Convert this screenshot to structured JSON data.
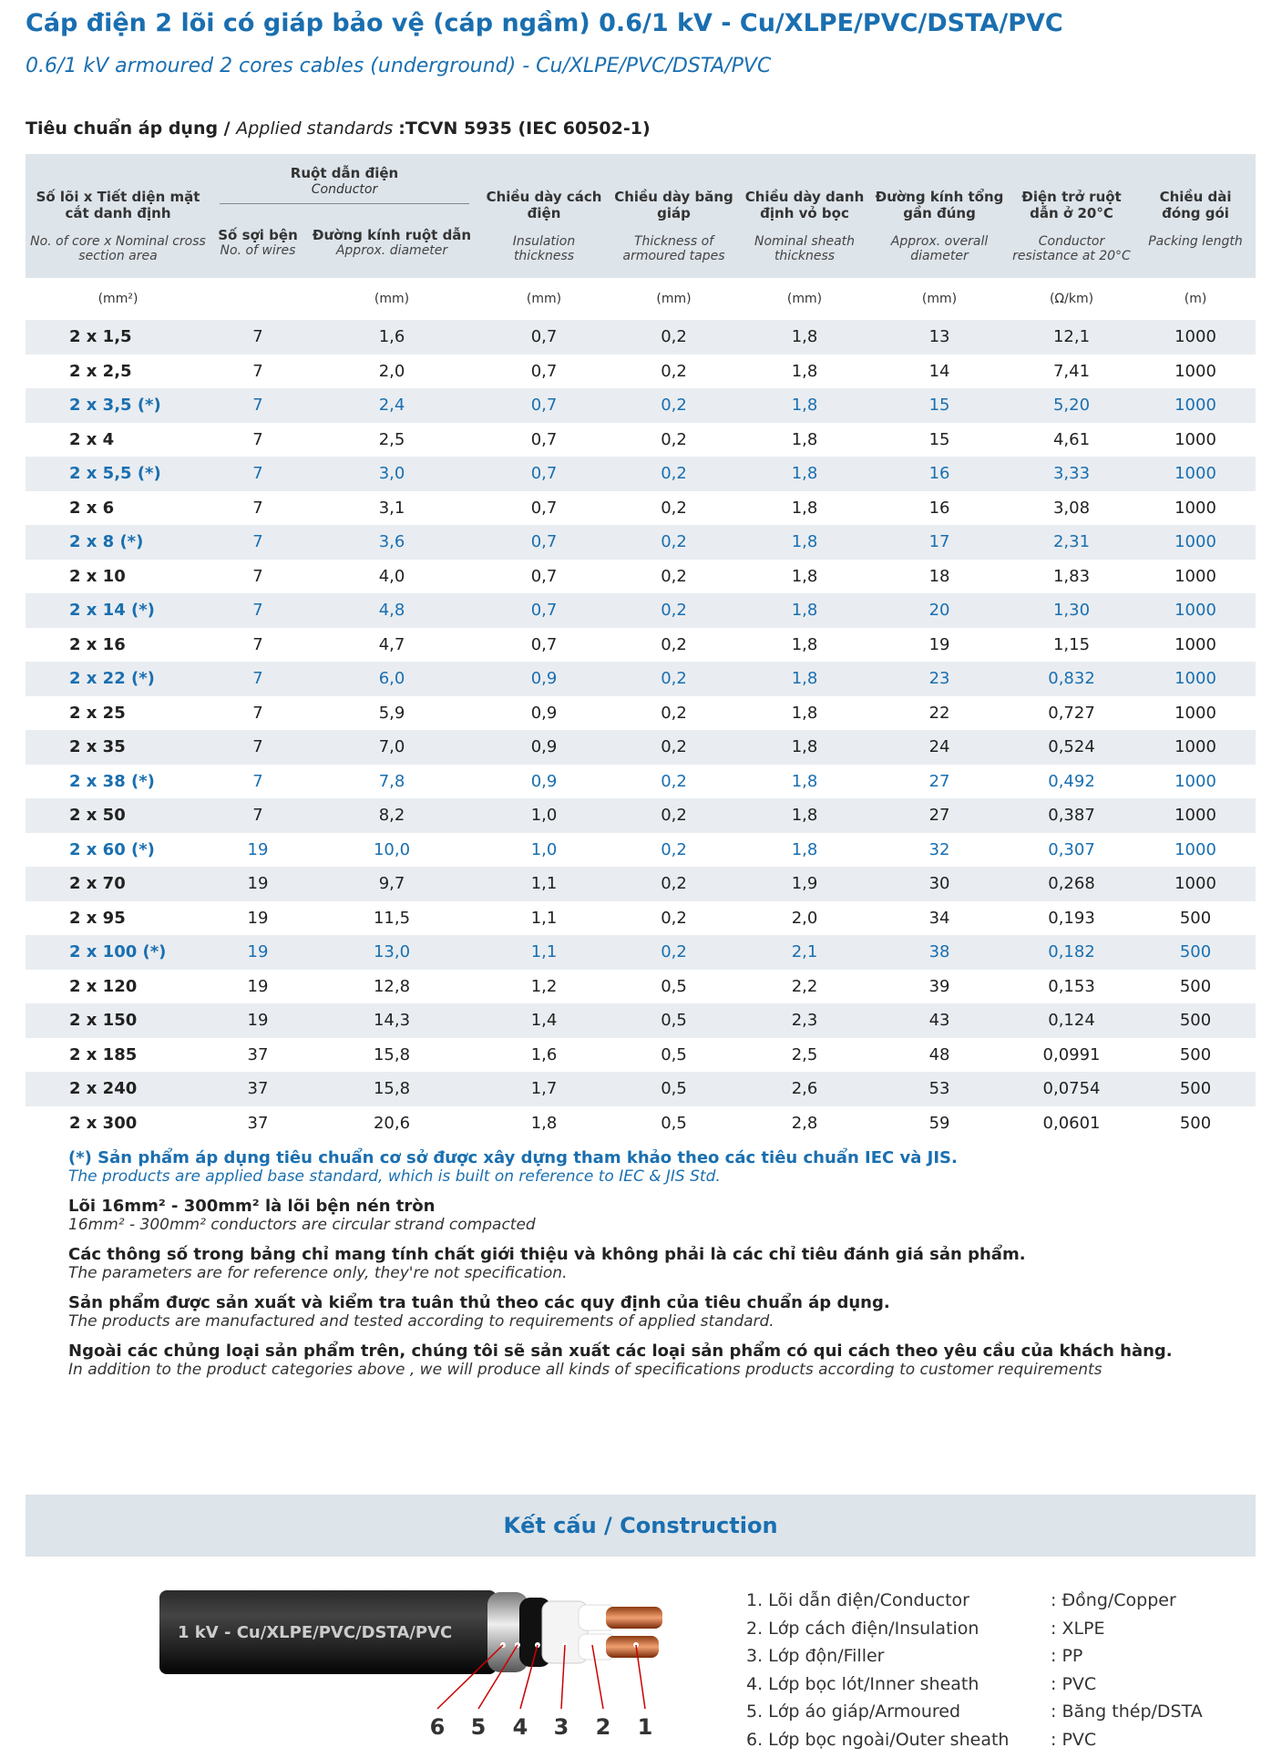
{
  "header": {
    "title": "Cáp điện 2 lõi có giáp bảo vệ (cáp ngầm) 0.6/1 kV - Cu/XLPE/PVC/DSTA/PVC",
    "subtitle": "0.6/1 kV armoured 2 cores cables (underground) - Cu/XLPE/PVC/DSTA/PVC",
    "standard_label": "Tiêu chuẩn áp dụng / ",
    "standard_italic": "Applied standards ",
    "standard_value": ":TCVN 5935 (IEC 60502-1)"
  },
  "table": {
    "conductor_group": {
      "vi": "Ruột dẫn điện",
      "en": "Conductor"
    },
    "columns": [
      {
        "vi": "Số lõi x Tiết diện mặt cắt danh định",
        "en": "No. of core x Nominal cross section area",
        "unit": "(mm²)"
      },
      {
        "vi": "Số sợi bện",
        "en": "No. of wires"
      },
      {
        "vi": "Đường kính ruột dẫn",
        "en": "Approx. diameter",
        "unit": "(mm)"
      },
      {
        "vi": "Chiều dày cách điện",
        "en": "Insulation thickness",
        "unit": "(mm)"
      },
      {
        "vi": "Chiều dày băng giáp",
        "en": "Thickness of armoured tapes",
        "unit": "(mm)"
      },
      {
        "vi": "Chiều dày danh định vỏ bọc",
        "en": "Nominal sheath thickness",
        "unit": "(mm)"
      },
      {
        "vi": "Đường kính tổng gần đúng",
        "en": "Approx. overall diameter",
        "unit": "(mm)"
      },
      {
        "vi": "Điện trở ruột dẫn ở 20°C",
        "en": "Conductor resistance at 20°C",
        "unit": "(Ω/km)"
      },
      {
        "vi": "Chiều dài đóng gói",
        "en": "Packing length",
        "unit": "(m)"
      }
    ],
    "rows": [
      [
        "2 x 1,5",
        "7",
        "1,6",
        "0,7",
        "0,2",
        "1,8",
        "13",
        "12,1",
        "1000"
      ],
      [
        "2 x 2,5",
        "7",
        "2,0",
        "0,7",
        "0,2",
        "1,8",
        "14",
        "7,41",
        "1000"
      ],
      [
        "2 x 3,5 (*)",
        "7",
        "2,4",
        "0,7",
        "0,2",
        "1,8",
        "15",
        "5,20",
        "1000"
      ],
      [
        "2 x 4",
        "7",
        "2,5",
        "0,7",
        "0,2",
        "1,8",
        "15",
        "4,61",
        "1000"
      ],
      [
        "2 x 5,5 (*)",
        "7",
        "3,0",
        "0,7",
        "0,2",
        "1,8",
        "16",
        "3,33",
        "1000"
      ],
      [
        "2 x 6",
        "7",
        "3,1",
        "0,7",
        "0,2",
        "1,8",
        "16",
        "3,08",
        "1000"
      ],
      [
        "2 x 8 (*)",
        "7",
        "3,6",
        "0,7",
        "0,2",
        "1,8",
        "17",
        "2,31",
        "1000"
      ],
      [
        "2 x 10",
        "7",
        "4,0",
        "0,7",
        "0,2",
        "1,8",
        "18",
        "1,83",
        "1000"
      ],
      [
        "2 x 14 (*)",
        "7",
        "4,8",
        "0,7",
        "0,2",
        "1,8",
        "20",
        "1,30",
        "1000"
      ],
      [
        "2 x 16",
        "7",
        "4,7",
        "0,7",
        "0,2",
        "1,8",
        "19",
        "1,15",
        "1000"
      ],
      [
        "2 x 22 (*)",
        "7",
        "6,0",
        "0,9",
        "0,2",
        "1,8",
        "23",
        "0,832",
        "1000"
      ],
      [
        "2 x 25",
        "7",
        "5,9",
        "0,9",
        "0,2",
        "1,8",
        "22",
        "0,727",
        "1000"
      ],
      [
        "2 x 35",
        "7",
        "7,0",
        "0,9",
        "0,2",
        "1,8",
        "24",
        "0,524",
        "1000"
      ],
      [
        "2 x 38 (*)",
        "7",
        "7,8",
        "0,9",
        "0,2",
        "1,8",
        "27",
        "0,492",
        "1000"
      ],
      [
        "2 x 50",
        "7",
        "8,2",
        "1,0",
        "0,2",
        "1,8",
        "27",
        "0,387",
        "1000"
      ],
      [
        "2 x 60 (*)",
        "19",
        "10,0",
        "1,0",
        "0,2",
        "1,8",
        "32",
        "0,307",
        "1000"
      ],
      [
        "2 x 70",
        "19",
        "9,7",
        "1,1",
        "0,2",
        "1,9",
        "30",
        "0,268",
        "1000"
      ],
      [
        "2 x 95",
        "19",
        "11,5",
        "1,1",
        "0,2",
        "2,0",
        "34",
        "0,193",
        "500"
      ],
      [
        "2 x 100 (*)",
        "19",
        "13,0",
        "1,1",
        "0,2",
        "2,1",
        "38",
        "0,182",
        "500"
      ],
      [
        "2 x 120",
        "19",
        "12,8",
        "1,2",
        "0,5",
        "2,2",
        "39",
        "0,153",
        "500"
      ],
      [
        "2 x 150",
        "19",
        "14,3",
        "1,4",
        "0,5",
        "2,3",
        "43",
        "0,124",
        "500"
      ],
      [
        "2 x 185",
        "37",
        "15,8",
        "1,6",
        "0,5",
        "2,5",
        "48",
        "0,0991",
        "500"
      ],
      [
        "2 x 240",
        "37",
        "15,8",
        "1,7",
        "0,5",
        "2,6",
        "53",
        "0,0754",
        "500"
      ],
      [
        "2 x 300",
        "37",
        "20,6",
        "1,8",
        "0,5",
        "2,8",
        "59",
        "0,0601",
        "500"
      ]
    ],
    "highlighted_rows": [
      2,
      4,
      6,
      8,
      10,
      13,
      15,
      18
    ],
    "highlight_color": "#1a6fb0"
  },
  "notes": [
    {
      "vi": "(*) Sản phẩm áp dụng tiêu chuẩn cơ sở được xây dựng tham khảo theo các tiêu chuẩn IEC và JIS.",
      "en": "The products are applied base standard, which is built on reference to IEC & JIS Std.",
      "color": "#1a6fb0"
    },
    {
      "vi": "Lõi 16mm² - 300mm² là lõi bện nén tròn",
      "en": "16mm² - 300mm² conductors are circular strand compacted"
    },
    {
      "vi": "Các thông số trong bảng chỉ mang tính chất giới thiệu và không phải là các chỉ tiêu đánh giá sản phẩm.",
      "en": "The parameters are for reference only, they're not specification."
    },
    {
      "vi": "Sản phẩm được sản xuất và kiểm tra tuân thủ theo các quy định của tiêu chuẩn áp dụng.",
      "en": "The products are manufactured and tested according to requirements of applied standard."
    },
    {
      "vi": "Ngoài các chủng loại sản phẩm trên, chúng tôi sẽ sản xuất các loại sản phẩm có qui cách theo yêu cầu của khách hàng.",
      "en": "In addition to the product categories above , we will produce all kinds of specifications products according to customer requirements"
    }
  ],
  "construction": {
    "title": "Kết cấu / Construction",
    "cable_label": "1 kV - Cu/XLPE/PVC/DSTA/PVC",
    "numbers": [
      "6",
      "5",
      "4",
      "3",
      "2",
      "1"
    ],
    "items": [
      {
        "name": "1. Lõi dẫn điện/Conductor",
        "value": ": Đồng/Copper"
      },
      {
        "name": "2. Lớp cách điện/Insulation",
        "value": ": XLPE"
      },
      {
        "name": "3. Lớp độn/Filler",
        "value": ": PP"
      },
      {
        "name": "4. Lớp bọc lót/Inner sheath",
        "value": ": PVC"
      },
      {
        "name": "5. Lớp áo giáp/Armoured",
        "value": ": Băng thép/DSTA"
      },
      {
        "name": "6. Lớp bọc ngoài/Outer sheath",
        "value": ": PVC"
      }
    ]
  }
}
